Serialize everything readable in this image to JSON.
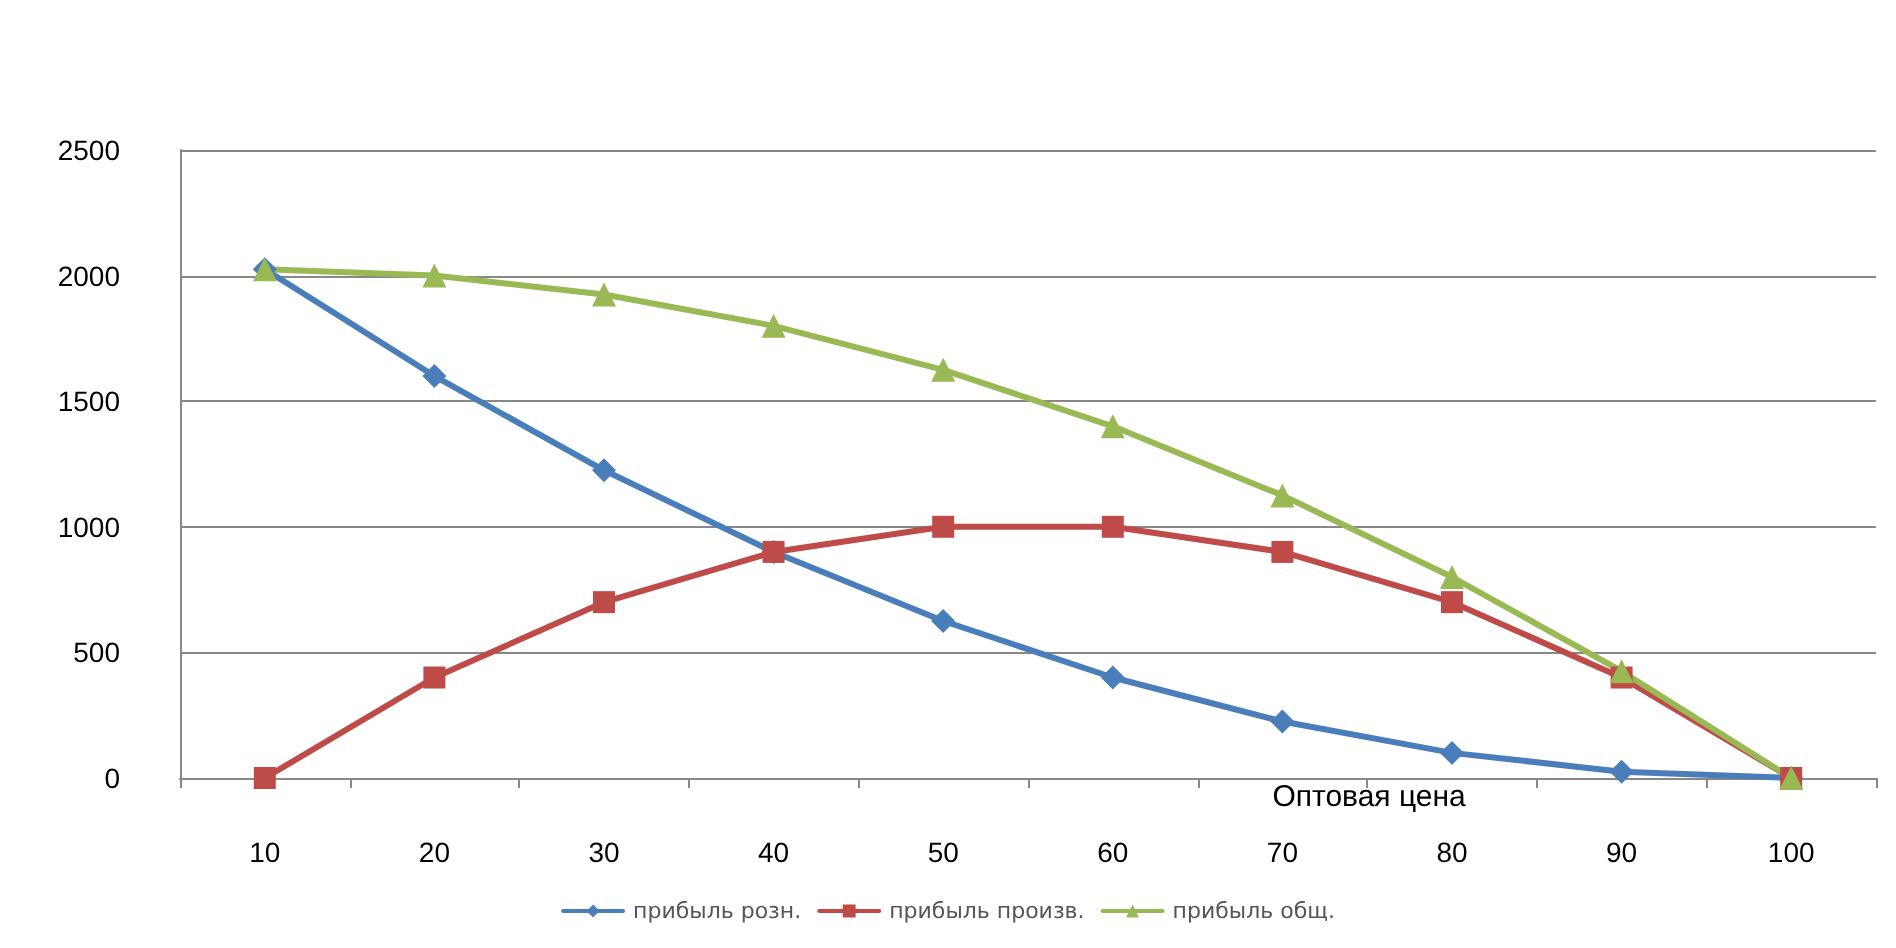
{
  "chart_data": {
    "type": "line",
    "xlabel": "Оптовая цена",
    "categories": [
      "10",
      "20",
      "30",
      "40",
      "50",
      "60",
      "70",
      "80",
      "90",
      "100"
    ],
    "series": [
      {
        "name": "прибыль розн.",
        "color": "#4a7ebb",
        "marker": "diamond",
        "values": [
          2025,
          1600,
          1225,
          900,
          625,
          400,
          225,
          100,
          25,
          0
        ]
      },
      {
        "name": "прибыль произв.",
        "color": "#be4b48",
        "marker": "square",
        "values": [
          0,
          400,
          700,
          900,
          1000,
          1000,
          900,
          700,
          400,
          0
        ]
      },
      {
        "name": "прибыль общ.",
        "color": "#98b954",
        "marker": "triangle",
        "values": [
          2025,
          2000,
          1925,
          1800,
          1625,
          1400,
          1125,
          800,
          425,
          0
        ]
      }
    ],
    "ylim": [
      0,
      2500
    ],
    "yticks": [
      0,
      500,
      1000,
      1500,
      2000,
      2500
    ],
    "grid": "y",
    "legend": "bottom",
    "line_style": "solid"
  }
}
